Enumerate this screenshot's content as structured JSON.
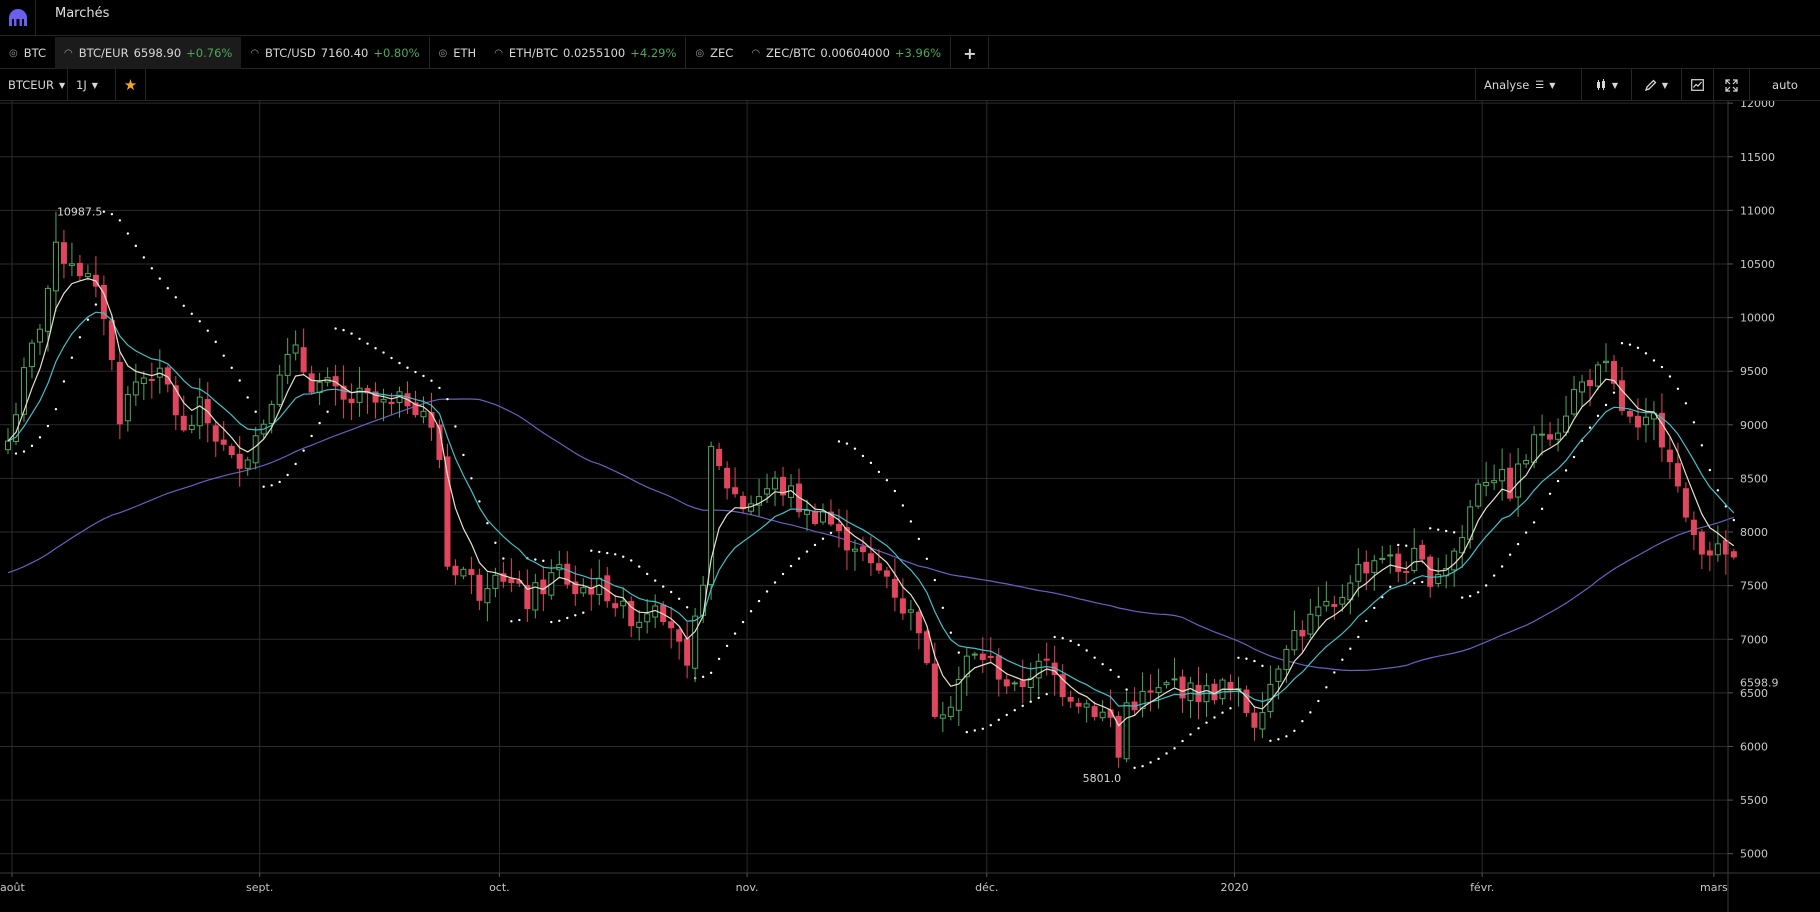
{
  "topbar": {
    "title": "Marchés"
  },
  "tickers": [
    {
      "name": "BTC",
      "value": "",
      "change": "",
      "group": true
    },
    {
      "name": "BTC/EUR",
      "value": "6598.90",
      "change": "+0.76%",
      "active": true
    },
    {
      "name": "BTC/USD",
      "value": "7160.40",
      "change": "+0.80%",
      "last": true
    },
    {
      "name": "ETH",
      "value": "",
      "change": "",
      "group": true
    },
    {
      "name": "ETH/BTC",
      "value": "0.0255100",
      "change": "+4.29%",
      "last": true
    },
    {
      "name": "ZEC",
      "value": "",
      "change": "",
      "group": true
    },
    {
      "name": "ZEC/BTC",
      "value": "0.00604000",
      "change": "+3.96%",
      "last": true
    }
  ],
  "toolbar": {
    "symbol": "BTCEUR",
    "interval": "1J",
    "analysis": "Analyse",
    "scale": "auto"
  },
  "colors": {
    "up": "#4fa75c",
    "down": "#e0475f",
    "ema_fast": "#e8e2c8",
    "ema_mid": "#3fc1c9",
    "ma_long": "#6a5fc1",
    "psar": "#ffffff"
  },
  "chart_data": {
    "type": "candlestick",
    "symbol": "BTCEUR",
    "interval": "1J",
    "x_ticks": [
      {
        "label": "août",
        "index": 0
      },
      {
        "label": "sept.",
        "index": 31
      },
      {
        "label": "oct.",
        "index": 61
      },
      {
        "label": "nov.",
        "index": 92
      },
      {
        "label": "déc.",
        "index": 122
      },
      {
        "label": "2020",
        "index": 153
      },
      {
        "label": "févr.",
        "index": 184
      },
      {
        "label": "mars",
        "index": 213
      }
    ],
    "y_ticks": [
      5000,
      5500,
      6000,
      6500,
      7000,
      7500,
      8000,
      8500,
      9000,
      9500,
      10000,
      10500,
      11000,
      11500,
      12000
    ],
    "y_min": 4820,
    "y_max": 12020,
    "current_price_label": "6598.9",
    "current_price": 6598.9,
    "annotations": [
      {
        "text": "10987.5",
        "index": 6,
        "value": 10987.5
      },
      {
        "text": "5801.0",
        "index": 139,
        "value": 5801.0
      }
    ],
    "close_keypoints": [
      [
        0,
        8850
      ],
      [
        2,
        9450
      ],
      [
        4,
        9950
      ],
      [
        6,
        10600
      ],
      [
        8,
        10550
      ],
      [
        10,
        10350
      ],
      [
        12,
        10050
      ],
      [
        14,
        9100
      ],
      [
        16,
        9400
      ],
      [
        18,
        9500
      ],
      [
        20,
        9350
      ],
      [
        22,
        8900
      ],
      [
        24,
        9150
      ],
      [
        26,
        8900
      ],
      [
        28,
        8650
      ],
      [
        30,
        8750
      ],
      [
        32,
        9050
      ],
      [
        34,
        9550
      ],
      [
        36,
        9650
      ],
      [
        38,
        9400
      ],
      [
        40,
        9350
      ],
      [
        42,
        9200
      ],
      [
        44,
        9250
      ],
      [
        46,
        9200
      ],
      [
        48,
        9150
      ],
      [
        50,
        9250
      ],
      [
        52,
        9150
      ],
      [
        54,
        8700
      ],
      [
        55,
        7700
      ],
      [
        57,
        7650
      ],
      [
        59,
        7450
      ],
      [
        61,
        7700
      ],
      [
        63,
        7500
      ],
      [
        65,
        7350
      ],
      [
        67,
        7500
      ],
      [
        69,
        7650
      ],
      [
        71,
        7450
      ],
      [
        73,
        7500
      ],
      [
        75,
        7450
      ],
      [
        77,
        7250
      ],
      [
        79,
        7200
      ],
      [
        81,
        7400
      ],
      [
        83,
        7150
      ],
      [
        85,
        6650
      ],
      [
        87,
        7600
      ],
      [
        88,
        8700
      ],
      [
        90,
        8450
      ],
      [
        92,
        8250
      ],
      [
        94,
        8350
      ],
      [
        96,
        8450
      ],
      [
        98,
        8350
      ],
      [
        100,
        8150
      ],
      [
        102,
        8200
      ],
      [
        104,
        7950
      ],
      [
        106,
        7900
      ],
      [
        108,
        7650
      ],
      [
        110,
        7600
      ],
      [
        112,
        7300
      ],
      [
        114,
        7150
      ],
      [
        115,
        6700
      ],
      [
        116,
        6350
      ],
      [
        118,
        6450
      ],
      [
        120,
        6800
      ],
      [
        122,
        6850
      ],
      [
        124,
        6700
      ],
      [
        126,
        6500
      ],
      [
        128,
        6700
      ],
      [
        130,
        6750
      ],
      [
        132,
        6550
      ],
      [
        134,
        6450
      ],
      [
        136,
        6350
      ],
      [
        138,
        6250
      ],
      [
        139,
        5900
      ],
      [
        140,
        6400
      ],
      [
        142,
        6450
      ],
      [
        144,
        6500
      ],
      [
        146,
        6600
      ],
      [
        148,
        6500
      ],
      [
        150,
        6500
      ],
      [
        152,
        6550
      ],
      [
        154,
        6450
      ],
      [
        156,
        6250
      ],
      [
        158,
        6600
      ],
      [
        160,
        7000
      ],
      [
        162,
        7100
      ],
      [
        164,
        7250
      ],
      [
        166,
        7250
      ],
      [
        168,
        7600
      ],
      [
        170,
        7700
      ],
      [
        172,
        7800
      ],
      [
        174,
        7650
      ],
      [
        176,
        7750
      ],
      [
        178,
        7600
      ],
      [
        180,
        7700
      ],
      [
        182,
        7950
      ],
      [
        184,
        8500
      ],
      [
        186,
        8550
      ],
      [
        188,
        8400
      ],
      [
        190,
        8700
      ],
      [
        192,
        8950
      ],
      [
        194,
        9000
      ],
      [
        196,
        9300
      ],
      [
        198,
        9450
      ],
      [
        200,
        9500
      ],
      [
        202,
        9150
      ],
      [
        204,
        8900
      ],
      [
        206,
        9050
      ],
      [
        208,
        8750
      ],
      [
        210,
        8050
      ],
      [
        212,
        7900
      ],
      [
        214,
        7800
      ],
      [
        216,
        7750
      ]
    ]
  }
}
